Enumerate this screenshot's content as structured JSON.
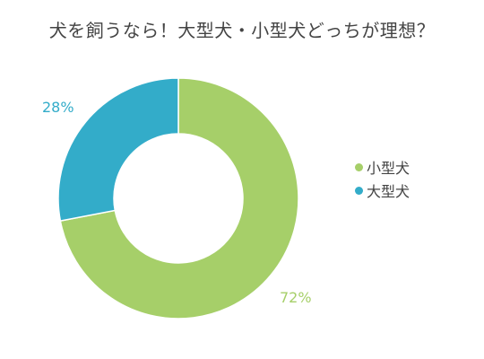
{
  "chart_data": {
    "type": "pie",
    "title": "犬を飼うなら！大型犬・小型犬どっちが理想？",
    "categories": [
      "小型犬",
      "大型犬"
    ],
    "values": [
      72,
      28
    ],
    "unit": "%",
    "colors": [
      "#a6cf69",
      "#33acc9"
    ],
    "value_labels": [
      "72%",
      "28%"
    ],
    "legend_position": "right",
    "donut": true
  }
}
